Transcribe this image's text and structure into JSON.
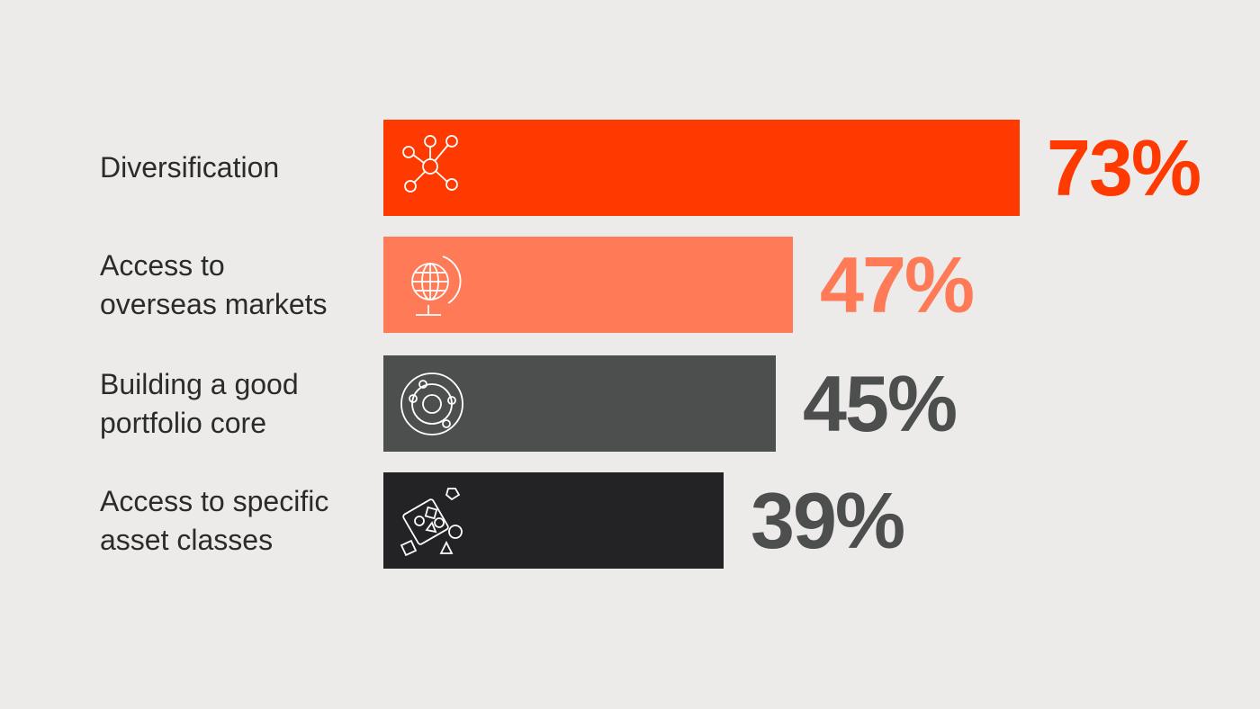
{
  "chart_data": {
    "type": "bar",
    "orientation": "horizontal",
    "categories": [
      [
        "Diversification"
      ],
      [
        "Access to",
        "overseas markets"
      ],
      [
        "Building a good",
        "portfolio core"
      ],
      [
        "Access to specific",
        "asset classes"
      ]
    ],
    "values": [
      73,
      47,
      45,
      39
    ],
    "value_labels": [
      "73%",
      "47%",
      "45%",
      "39%"
    ],
    "bar_colors": [
      "#ff3a00",
      "#ff7a57",
      "#4d4e4e",
      "#232325"
    ],
    "value_colors": [
      "#ff3a00",
      "#ff7a57",
      "#4d4e4e",
      "#4d4e4e"
    ],
    "icons": [
      "network-icon",
      "globe-icon",
      "orbit-icon",
      "shapes-icon"
    ],
    "xlim": [
      0,
      73
    ],
    "grid": false,
    "legend": "none"
  }
}
